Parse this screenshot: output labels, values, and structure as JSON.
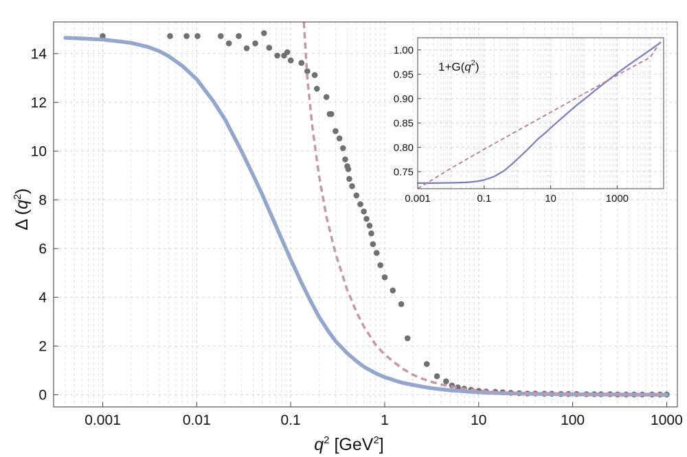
{
  "chart_data": [
    {
      "type": "scatter",
      "x_scale": "log",
      "ylabel": "Δ (q²)",
      "ylabel_parts": {
        "base": "Δ (",
        "var": "q",
        "sup": "2",
        "tail": ")"
      },
      "xlabel": "q² [GeV²]",
      "xlabel_parts": {
        "var": "q",
        "sup": "2",
        "unit_pre": " [GeV",
        "unit_sup": "2",
        "unit_post": "]"
      },
      "xlim": [
        0.0003,
        1300
      ],
      "ylim": [
        -0.5,
        15.3
      ],
      "x_ticks": [
        "0.001",
        "0.01",
        "0.1",
        "1",
        "10",
        "100",
        "1000"
      ],
      "y_ticks": [
        "0",
        "2",
        "4",
        "6",
        "8",
        "10",
        "12",
        "14"
      ],
      "grid": true,
      "colors": {
        "solid": "#94a6cc",
        "dashed": "#c497ad",
        "points": "#707070"
      },
      "series": [
        {
          "style": "dots",
          "x": [
            0.001,
            0.0052,
            0.0078,
            0.0102,
            0.018,
            0.022,
            0.028,
            0.034,
            0.042,
            0.052,
            0.059,
            0.072,
            0.085,
            0.092,
            0.1,
            0.13,
            0.15,
            0.18,
            0.19,
            0.24,
            0.26,
            0.27,
            0.3,
            0.33,
            0.36,
            0.38,
            0.4,
            0.41,
            0.42,
            0.45,
            0.5,
            0.55,
            0.6,
            0.64,
            0.69,
            0.72,
            0.75,
            0.82,
            0.9,
            1.0,
            1.22,
            1.5,
            1.75,
            2.8,
            3.6,
            4.5,
            5.2,
            6.0,
            7.0,
            8.3,
            10,
            12,
            15,
            18,
            22,
            27,
            33,
            40,
            50,
            60,
            75,
            90,
            110,
            140,
            170,
            200,
            250,
            300,
            370,
            450,
            550,
            700,
            850,
            1000
          ],
          "y": [
            14.72,
            14.72,
            14.72,
            14.72,
            14.72,
            14.42,
            14.72,
            14.22,
            14.42,
            14.84,
            14.24,
            13.92,
            13.92,
            14.06,
            13.72,
            13.62,
            13.28,
            13.12,
            12.56,
            12.22,
            11.52,
            11.52,
            10.82,
            10.52,
            10.12,
            9.66,
            9.38,
            9.26,
            8.86,
            8.56,
            8.18,
            7.82,
            7.52,
            7.22,
            6.94,
            6.62,
            6.18,
            5.82,
            5.32,
            4.82,
            4.28,
            3.72,
            2.32,
            1.26,
            0.76,
            0.55,
            0.38,
            0.3,
            0.25,
            0.2,
            0.16,
            0.13,
            0.12,
            0.1,
            0.08,
            0.06,
            0.05,
            0.05,
            0.04,
            0.04,
            0.03,
            0.03,
            0.03,
            0.02,
            0.02,
            0.02,
            0.02,
            0.01,
            0.01,
            0.01,
            0.01,
            0.01,
            0.01,
            0.01
          ]
        },
        {
          "style": "solid",
          "x": [
            0.0004,
            0.0006,
            0.001,
            0.0015,
            0.002,
            0.003,
            0.004,
            0.005,
            0.007,
            0.01,
            0.015,
            0.02,
            0.03,
            0.04,
            0.05,
            0.06,
            0.08,
            0.1,
            0.13,
            0.16,
            0.2,
            0.25,
            0.3,
            0.4,
            0.5,
            0.6,
            0.8,
            1.0,
            1.5,
            2,
            3,
            4,
            5,
            7,
            10,
            15,
            20,
            30,
            50,
            100,
            300,
            1000
          ],
          "y": [
            14.65,
            14.62,
            14.58,
            14.5,
            14.44,
            14.28,
            14.1,
            13.9,
            13.5,
            12.95,
            12.05,
            11.3,
            10.0,
            9.0,
            8.2,
            7.5,
            6.4,
            5.55,
            4.6,
            3.9,
            3.2,
            2.62,
            2.2,
            1.7,
            1.38,
            1.15,
            0.88,
            0.72,
            0.5,
            0.4,
            0.28,
            0.22,
            0.18,
            0.14,
            0.1,
            0.07,
            0.06,
            0.04,
            0.03,
            0.015,
            0.006,
            0.002
          ]
        },
        {
          "style": "dashed",
          "x": [
            0.138,
            0.15,
            0.17,
            0.2,
            0.24,
            0.3,
            0.4,
            0.5,
            0.6,
            0.7,
            0.8,
            1.0,
            1.2,
            1.5,
            2,
            2.5,
            3,
            4,
            5,
            7,
            10,
            15,
            20,
            30,
            50,
            100,
            200,
            500,
            1000
          ],
          "y": [
            15.3,
            13.0,
            11.0,
            9.0,
            7.3,
            5.8,
            4.3,
            3.4,
            2.8,
            2.4,
            2.05,
            1.65,
            1.4,
            1.1,
            0.82,
            0.66,
            0.55,
            0.42,
            0.34,
            0.24,
            0.17,
            0.11,
            0.08,
            0.055,
            0.035,
            0.018,
            0.009,
            0.004,
            0.002
          ]
        }
      ]
    },
    {
      "type": "line",
      "inset": true,
      "x_scale": "log",
      "annotation": "1+G(q²)",
      "annotation_parts": {
        "pre": "1+G(",
        "var": "q",
        "sup": "2",
        "post": ")"
      },
      "xlim": [
        0.001,
        25000
      ],
      "ylim": [
        0.715,
        1.025
      ],
      "x_ticks": [
        "0.001",
        "0.1",
        "10",
        "1000"
      ],
      "y_ticks": [
        "0.75",
        "0.80",
        "0.85",
        "0.90",
        "0.95",
        "1.00"
      ],
      "grid": true,
      "colors": {
        "solid": "#7f7fbb",
        "dashed": "#b07c98"
      },
      "series": [
        {
          "style": "solid",
          "x": [
            0.001,
            0.003,
            0.01,
            0.03,
            0.06,
            0.1,
            0.2,
            0.4,
            0.7,
            1,
            2,
            4,
            7,
            10,
            20,
            40,
            70,
            100,
            200,
            400,
            700,
            1000,
            2000,
            5000,
            10000,
            20000
          ],
          "y": [
            0.7265,
            0.7265,
            0.727,
            0.728,
            0.73,
            0.733,
            0.74,
            0.752,
            0.766,
            0.776,
            0.795,
            0.816,
            0.83,
            0.84,
            0.858,
            0.876,
            0.89,
            0.898,
            0.915,
            0.931,
            0.944,
            0.952,
            0.967,
            0.986,
            1.0,
            1.015
          ]
        },
        {
          "style": "dashed",
          "x": [
            0.001,
            0.01,
            0.1,
            1,
            10,
            100,
            1000,
            10000,
            20000
          ],
          "y": [
            0.715,
            0.757,
            0.796,
            0.834,
            0.872,
            0.91,
            0.948,
            0.985,
            1.017
          ]
        }
      ]
    }
  ]
}
